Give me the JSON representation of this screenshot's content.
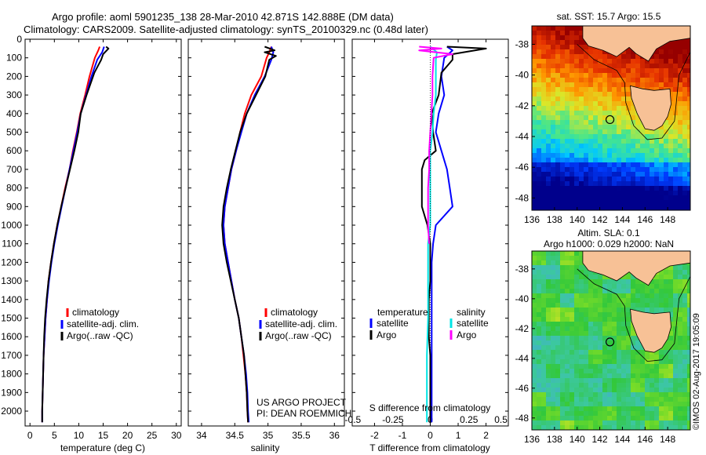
{
  "header": {
    "line1": "Argo profile: aoml 5901235_138 28-Mar-2010 42.871S 142.888E (DM data)",
    "line2": "Climatology: CARS2009. Satellite-adjusted climatology: synTS_20100329.nc (0.48d later)"
  },
  "colors": {
    "climatology": "#ff0000",
    "satellite": "#0000ff",
    "argo": "#000000",
    "satellite_s": "#00e5e5",
    "argo_s": "#ff00ff",
    "land": "#f7c196"
  },
  "chart_data": [
    {
      "type": "line",
      "xlabel": "temperature (deg C)",
      "ylabel": "",
      "xlim": [
        -1,
        31
      ],
      "ylim": [
        2080,
        0
      ],
      "xticks": [
        "0",
        "5",
        "10",
        "15",
        "20",
        "25",
        "30"
      ],
      "yticks": [
        "0",
        "100",
        "200",
        "300",
        "400",
        "500",
        "600",
        "700",
        "800",
        "900",
        "1000",
        "1100",
        "1200",
        "1300",
        "1400",
        "1500",
        "1600",
        "1700",
        "1800",
        "1900",
        "2000"
      ],
      "legend": {
        "placement": "lower-center",
        "entries": [
          "climatology",
          "satellite-adj. clim.",
          "Argo(..raw -QC)"
        ]
      },
      "series": [
        {
          "name": "climatology",
          "points": [
            [
              14.3,
              40
            ],
            [
              14.0,
              60
            ],
            [
              13.3,
              100
            ],
            [
              12.2,
              200
            ],
            [
              11.3,
              300
            ],
            [
              10.3,
              400
            ],
            [
              9.6,
              500
            ],
            [
              8.8,
              600
            ],
            [
              8.1,
              700
            ],
            [
              7.2,
              800
            ],
            [
              6.4,
              900
            ],
            [
              5.6,
              1000
            ],
            [
              4.9,
              1100
            ],
            [
              4.3,
              1200
            ],
            [
              3.8,
              1300
            ],
            [
              3.5,
              1400
            ],
            [
              3.2,
              1500
            ],
            [
              3.0,
              1600
            ],
            [
              2.8,
              1700
            ],
            [
              2.7,
              1800
            ],
            [
              2.6,
              1900
            ],
            [
              2.5,
              2000
            ],
            [
              2.5,
              2060
            ]
          ]
        },
        {
          "name": "satellite-adj. clim.",
          "points": [
            [
              15.2,
              40
            ],
            [
              14.8,
              70
            ],
            [
              13.8,
              110
            ],
            [
              12.6,
              200
            ],
            [
              11.5,
              300
            ],
            [
              10.4,
              400
            ],
            [
              9.7,
              500
            ],
            [
              8.9,
              600
            ],
            [
              8.1,
              700
            ],
            [
              7.3,
              800
            ],
            [
              6.5,
              900
            ],
            [
              5.7,
              1000
            ],
            [
              5.0,
              1100
            ],
            [
              4.4,
              1200
            ],
            [
              3.9,
              1300
            ],
            [
              3.5,
              1400
            ],
            [
              3.2,
              1500
            ],
            [
              3.0,
              1600
            ],
            [
              2.8,
              1700
            ],
            [
              2.7,
              1800
            ],
            [
              2.6,
              1900
            ],
            [
              2.5,
              2000
            ],
            [
              2.5,
              2060
            ]
          ]
        },
        {
          "name": "Argo(..raw -QC)",
          "points": [
            [
              15.6,
              40
            ],
            [
              16.1,
              50
            ],
            [
              15.0,
              80
            ],
            [
              14.6,
              110
            ],
            [
              13.2,
              180
            ],
            [
              11.6,
              300
            ],
            [
              10.4,
              400
            ],
            [
              9.9,
              500
            ],
            [
              9.1,
              600
            ],
            [
              8.2,
              700
            ],
            [
              7.3,
              800
            ],
            [
              6.4,
              900
            ],
            [
              5.6,
              1000
            ],
            [
              4.9,
              1100
            ],
            [
              4.3,
              1200
            ],
            [
              3.8,
              1300
            ],
            [
              3.4,
              1400
            ],
            [
              3.1,
              1500
            ],
            [
              2.9,
              1600
            ],
            [
              2.8,
              1700
            ],
            [
              2.7,
              1800
            ],
            [
              2.6,
              1900
            ],
            [
              2.5,
              2000
            ],
            [
              2.5,
              2060
            ]
          ]
        }
      ]
    },
    {
      "type": "line",
      "xlabel": "salinity",
      "ylabel": "",
      "xlim": [
        33.8,
        36.15
      ],
      "ylim": [
        2080,
        0
      ],
      "xticks": [
        "34",
        "34.5",
        "35",
        "35.5",
        "36"
      ],
      "yticks": [],
      "legend": {
        "placement": "lower-center",
        "entries": [
          "climatology",
          "satellite-adj. clim.",
          "Argo(..raw -QC)"
        ]
      },
      "annotations": [
        "US ARGO PROJECT",
        "PI: DEAN ROEMMICH"
      ],
      "series": [
        {
          "name": "climatology",
          "points": [
            [
              35.05,
              40
            ],
            [
              35.02,
              70
            ],
            [
              34.98,
              100
            ],
            [
              34.9,
              200
            ],
            [
              34.75,
              300
            ],
            [
              34.65,
              400
            ],
            [
              34.58,
              500
            ],
            [
              34.52,
              600
            ],
            [
              34.45,
              700
            ],
            [
              34.4,
              800
            ],
            [
              34.35,
              900
            ],
            [
              34.33,
              1000
            ],
            [
              34.35,
              1100
            ],
            [
              34.4,
              1200
            ],
            [
              34.45,
              1300
            ],
            [
              34.5,
              1400
            ],
            [
              34.56,
              1500
            ],
            [
              34.6,
              1600
            ],
            [
              34.63,
              1700
            ],
            [
              34.66,
              1800
            ],
            [
              34.68,
              1900
            ],
            [
              34.69,
              2000
            ],
            [
              34.7,
              2060
            ]
          ]
        },
        {
          "name": "satellite-adj. clim.",
          "points": [
            [
              35.05,
              40
            ],
            [
              35.08,
              70
            ],
            [
              35.05,
              110
            ],
            [
              34.95,
              200
            ],
            [
              34.8,
              300
            ],
            [
              34.68,
              400
            ],
            [
              34.6,
              500
            ],
            [
              34.52,
              600
            ],
            [
              34.45,
              700
            ],
            [
              34.4,
              800
            ],
            [
              34.35,
              900
            ],
            [
              34.33,
              1000
            ],
            [
              34.35,
              1100
            ],
            [
              34.4,
              1200
            ],
            [
              34.45,
              1300
            ],
            [
              34.5,
              1400
            ],
            [
              34.56,
              1500
            ],
            [
              34.6,
              1600
            ],
            [
              34.64,
              1700
            ],
            [
              34.67,
              1800
            ],
            [
              34.69,
              1900
            ],
            [
              34.7,
              2000
            ],
            [
              34.71,
              2060
            ]
          ]
        },
        {
          "name": "Argo(..raw -QC)",
          "points": [
            [
              34.95,
              40
            ],
            [
              35.1,
              60
            ],
            [
              34.95,
              70
            ],
            [
              35.12,
              90
            ],
            [
              35.02,
              110
            ],
            [
              34.96,
              200
            ],
            [
              34.82,
              300
            ],
            [
              34.68,
              400
            ],
            [
              34.58,
              500
            ],
            [
              34.51,
              600
            ],
            [
              34.44,
              700
            ],
            [
              34.38,
              800
            ],
            [
              34.33,
              900
            ],
            [
              34.31,
              1000
            ],
            [
              34.33,
              1100
            ],
            [
              34.38,
              1200
            ],
            [
              34.44,
              1300
            ],
            [
              34.5,
              1400
            ],
            [
              34.56,
              1500
            ],
            [
              34.6,
              1600
            ],
            [
              34.64,
              1700
            ],
            [
              34.66,
              1800
            ],
            [
              34.68,
              1900
            ],
            [
              34.69,
              2000
            ],
            [
              34.7,
              2060
            ]
          ]
        }
      ]
    },
    {
      "type": "line",
      "xlabel": "T difference from climatology",
      "ylabel": "",
      "xlim": [
        -2.8,
        2.8
      ],
      "ylim": [
        2080,
        0
      ],
      "xticks": [
        "-2",
        "-1",
        "0",
        "1",
        "2"
      ],
      "yticks": [],
      "secondary_xlabel": "S difference from climatology",
      "secondary_xticks": [
        "-0.5",
        "-0.25",
        "0",
        "0.25",
        "0.5"
      ],
      "legend": {
        "placement": "lower-center",
        "titles": [
          "temperature",
          "salinity"
        ],
        "entries": [
          "satellite",
          "Argo",
          "satellite",
          "Argo"
        ]
      },
      "series": [
        {
          "name": "temperature satellite",
          "points": [
            [
              0.6,
              40
            ],
            [
              0.8,
              60
            ],
            [
              0.5,
              100
            ],
            [
              0.4,
              200
            ],
            [
              0.5,
              300
            ],
            [
              0.3,
              400
            ],
            [
              0.2,
              500
            ],
            [
              0.4,
              600
            ],
            [
              0.6,
              700
            ],
            [
              0.7,
              800
            ],
            [
              0.8,
              900
            ],
            [
              0.2,
              1000
            ],
            [
              0.1,
              1100
            ],
            [
              0.05,
              1200
            ],
            [
              0.05,
              1300
            ],
            [
              0.05,
              1400
            ],
            [
              0.05,
              1500
            ],
            [
              0.05,
              1600
            ],
            [
              0.05,
              1700
            ],
            [
              0.05,
              1800
            ],
            [
              0.05,
              1900
            ],
            [
              0.05,
              2000
            ],
            [
              0.05,
              2060
            ]
          ]
        },
        {
          "name": "temperature Argo",
          "points": [
            [
              0.6,
              40
            ],
            [
              2.0,
              50
            ],
            [
              0.8,
              80
            ],
            [
              0.8,
              110
            ],
            [
              0.4,
              180
            ],
            [
              0.3,
              300
            ],
            [
              0.05,
              400
            ],
            [
              0.1,
              500
            ],
            [
              0.2,
              600
            ],
            [
              -0.2,
              650
            ],
            [
              -0.3,
              700
            ],
            [
              -0.3,
              800
            ],
            [
              -0.3,
              900
            ],
            [
              -0.1,
              1000
            ],
            [
              0.0,
              1100
            ],
            [
              0.0,
              1200
            ],
            [
              0.0,
              1300
            ],
            [
              -0.05,
              1400
            ],
            [
              -0.05,
              1500
            ],
            [
              -0.05,
              1600
            ],
            [
              0.0,
              1700
            ],
            [
              0.0,
              1800
            ],
            [
              0.0,
              1900
            ],
            [
              0.0,
              2000
            ],
            [
              0.0,
              2060
            ]
          ]
        },
        {
          "name": "salinity satellite",
          "points": [
            [
              0.0,
              40
            ],
            [
              0.06,
              70
            ],
            [
              0.05,
              110
            ],
            [
              0.05,
              200
            ],
            [
              0.05,
              300
            ],
            [
              0.03,
              400
            ],
            [
              0.02,
              500
            ],
            [
              0.0,
              600
            ],
            [
              0.0,
              700
            ],
            [
              0.0,
              800
            ],
            [
              0.0,
              900
            ],
            [
              0.0,
              1000
            ],
            [
              -0.02,
              1100
            ],
            [
              -0.02,
              1300
            ],
            [
              -0.02,
              1500
            ],
            [
              -0.03,
              1700
            ],
            [
              -0.03,
              1900
            ],
            [
              -0.03,
              2060
            ]
          ]
        },
        {
          "name": "salinity Argo",
          "points": [
            [
              -0.1,
              40
            ],
            [
              0.1,
              50
            ],
            [
              -0.1,
              60
            ],
            [
              0.2,
              80
            ],
            [
              0.03,
              100
            ],
            [
              0.02,
              200
            ],
            [
              0.02,
              300
            ],
            [
              0.01,
              400
            ],
            [
              0.0,
              500
            ],
            [
              -0.01,
              600
            ],
            [
              -0.01,
              700
            ],
            [
              -0.02,
              800
            ],
            [
              -0.02,
              900
            ],
            [
              -0.02,
              1000
            ],
            [
              -0.01,
              1100
            ]
          ]
        }
      ]
    }
  ],
  "maps": [
    {
      "title": "sat. SST: 15.7 Argo: 15.5",
      "xticks": [
        "136",
        "138",
        "140",
        "142",
        "144",
        "146",
        "148"
      ],
      "yticks": [
        "-38",
        "-40",
        "-42",
        "-44",
        "-46",
        "-48"
      ],
      "palette": "sst",
      "marker": {
        "lon": 142.9,
        "lat": -42.9
      }
    },
    {
      "title": "Altim. SLA: 0.1",
      "subtitle": "Argo h1000: 0.029 h2000: NaN",
      "xticks": [
        "136",
        "138",
        "140",
        "142",
        "144",
        "146",
        "148"
      ],
      "yticks": [
        "-38",
        "-40",
        "-42",
        "-44",
        "-46",
        "-48"
      ],
      "palette": "sla",
      "marker": {
        "lon": 142.9,
        "lat": -42.9
      }
    }
  ],
  "footer": {
    "watermark": "©IMOS 02-Aug-2017 19:05:09"
  }
}
